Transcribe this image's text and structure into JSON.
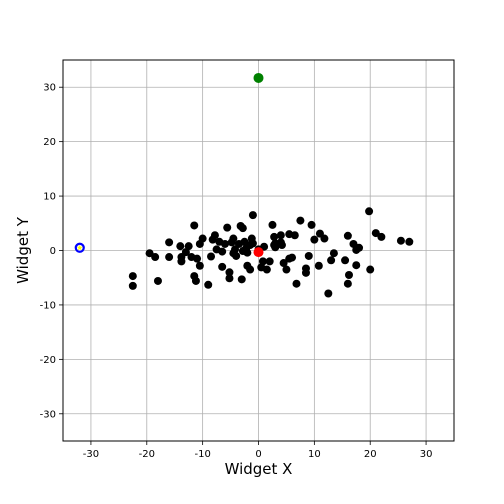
{
  "chart_data": {
    "type": "scatter",
    "title": "",
    "xlabel": "Widget X",
    "ylabel": "Widget Y",
    "xlim": [
      -35,
      35
    ],
    "ylim": [
      -35,
      35
    ],
    "x_ticks": [
      -30,
      -20,
      -10,
      0,
      10,
      20,
      30
    ],
    "y_ticks": [
      -30,
      -20,
      -10,
      0,
      10,
      20,
      30
    ],
    "grid": true,
    "series": [
      {
        "color": "#000000",
        "marker": "circle",
        "points": [
          [
            -22.5,
            -4.7
          ],
          [
            -22.5,
            -6.5
          ],
          [
            -19.5,
            -0.5
          ],
          [
            -18.5,
            -1.2
          ],
          [
            -18,
            -5.6
          ],
          [
            -16,
            1.5
          ],
          [
            -16,
            -1.2
          ],
          [
            -14,
            0.8
          ],
          [
            -13.8,
            -1.2
          ],
          [
            -13.8,
            -2
          ],
          [
            -13,
            -0.3
          ],
          [
            -12.5,
            0.8
          ],
          [
            -12,
            -1.2
          ],
          [
            -11.5,
            4.6
          ],
          [
            -11.5,
            -4.7
          ],
          [
            -11.2,
            -5.6
          ],
          [
            -11,
            -1.5
          ],
          [
            -10.5,
            1.2
          ],
          [
            -10.5,
            -2.8
          ],
          [
            -10,
            2.2
          ],
          [
            -9,
            -6.3
          ],
          [
            -8.5,
            -1.1
          ],
          [
            -8.2,
            2
          ],
          [
            -7.8,
            2.8
          ],
          [
            -7.5,
            0.2
          ],
          [
            -7,
            1.6
          ],
          [
            -6.5,
            -0.2
          ],
          [
            -6.5,
            -3
          ],
          [
            -6,
            1.2
          ],
          [
            -5.6,
            4.2
          ],
          [
            -5.2,
            -4
          ],
          [
            -5.2,
            -5.1
          ],
          [
            -4.8,
            1.5
          ],
          [
            -4.5,
            2.2
          ],
          [
            -4.5,
            -0.5
          ],
          [
            -4.2,
            0.2
          ],
          [
            -4,
            -1
          ],
          [
            -3.5,
            1.2
          ],
          [
            -3.2,
            4.5
          ],
          [
            -3,
            -5.3
          ],
          [
            -2.8,
            4.1
          ],
          [
            -2.8,
            -0.1
          ],
          [
            -2.5,
            1.6
          ],
          [
            -2.2,
            0.4
          ],
          [
            -2,
            -0.4
          ],
          [
            -2,
            -2.8
          ],
          [
            -1.5,
            1
          ],
          [
            -1.5,
            -3.5
          ],
          [
            -1.2,
            2.2
          ],
          [
            -1,
            6.5
          ],
          [
            -1,
            1.3
          ],
          [
            0,
            0.2
          ],
          [
            0.5,
            -3.1
          ],
          [
            0.8,
            -2
          ],
          [
            1,
            0.7
          ],
          [
            1.5,
            -3.5
          ],
          [
            2,
            -2
          ],
          [
            2.5,
            4.7
          ],
          [
            2.8,
            2.5
          ],
          [
            2.8,
            1
          ],
          [
            3,
            1.3
          ],
          [
            3,
            0.6
          ],
          [
            4,
            1.5
          ],
          [
            4,
            2.8
          ],
          [
            4.2,
            1
          ],
          [
            4.5,
            -2.3
          ],
          [
            5,
            -3.5
          ],
          [
            5.5,
            -1.5
          ],
          [
            5.5,
            3
          ],
          [
            6,
            -1.3
          ],
          [
            6.5,
            2.8
          ],
          [
            6.8,
            -6.1
          ],
          [
            7.5,
            5.5
          ],
          [
            8.5,
            -3.3
          ],
          [
            8.5,
            -4.1
          ],
          [
            9,
            -1
          ],
          [
            9.5,
            4.7
          ],
          [
            10,
            2
          ],
          [
            10.8,
            -2.8
          ],
          [
            11,
            3.1
          ],
          [
            11.8,
            2.2
          ],
          [
            12.5,
            -7.9
          ],
          [
            13,
            -1.8
          ],
          [
            13.5,
            -0.5
          ],
          [
            15.5,
            -1.8
          ],
          [
            16,
            -6.1
          ],
          [
            16,
            2.7
          ],
          [
            16.2,
            -4.5
          ],
          [
            17,
            1.2
          ],
          [
            17.5,
            -2.7
          ],
          [
            17.5,
            0.1
          ],
          [
            18,
            0.5
          ],
          [
            19.8,
            7.2
          ],
          [
            20,
            -3.5
          ],
          [
            21,
            3.2
          ],
          [
            22,
            2.5
          ],
          [
            25.5,
            1.8
          ],
          [
            27,
            1.6
          ]
        ]
      },
      {
        "color": "#ff0000",
        "marker": "circle",
        "points": [
          [
            0,
            -0.3
          ]
        ]
      },
      {
        "color": "#008000",
        "marker": "circle",
        "points": [
          [
            0,
            31.7
          ]
        ]
      },
      {
        "color": "#0000ff",
        "marker": "ring-with-star",
        "inner_color": "#ffff00",
        "points": [
          [
            -32,
            0.5
          ]
        ]
      }
    ]
  }
}
